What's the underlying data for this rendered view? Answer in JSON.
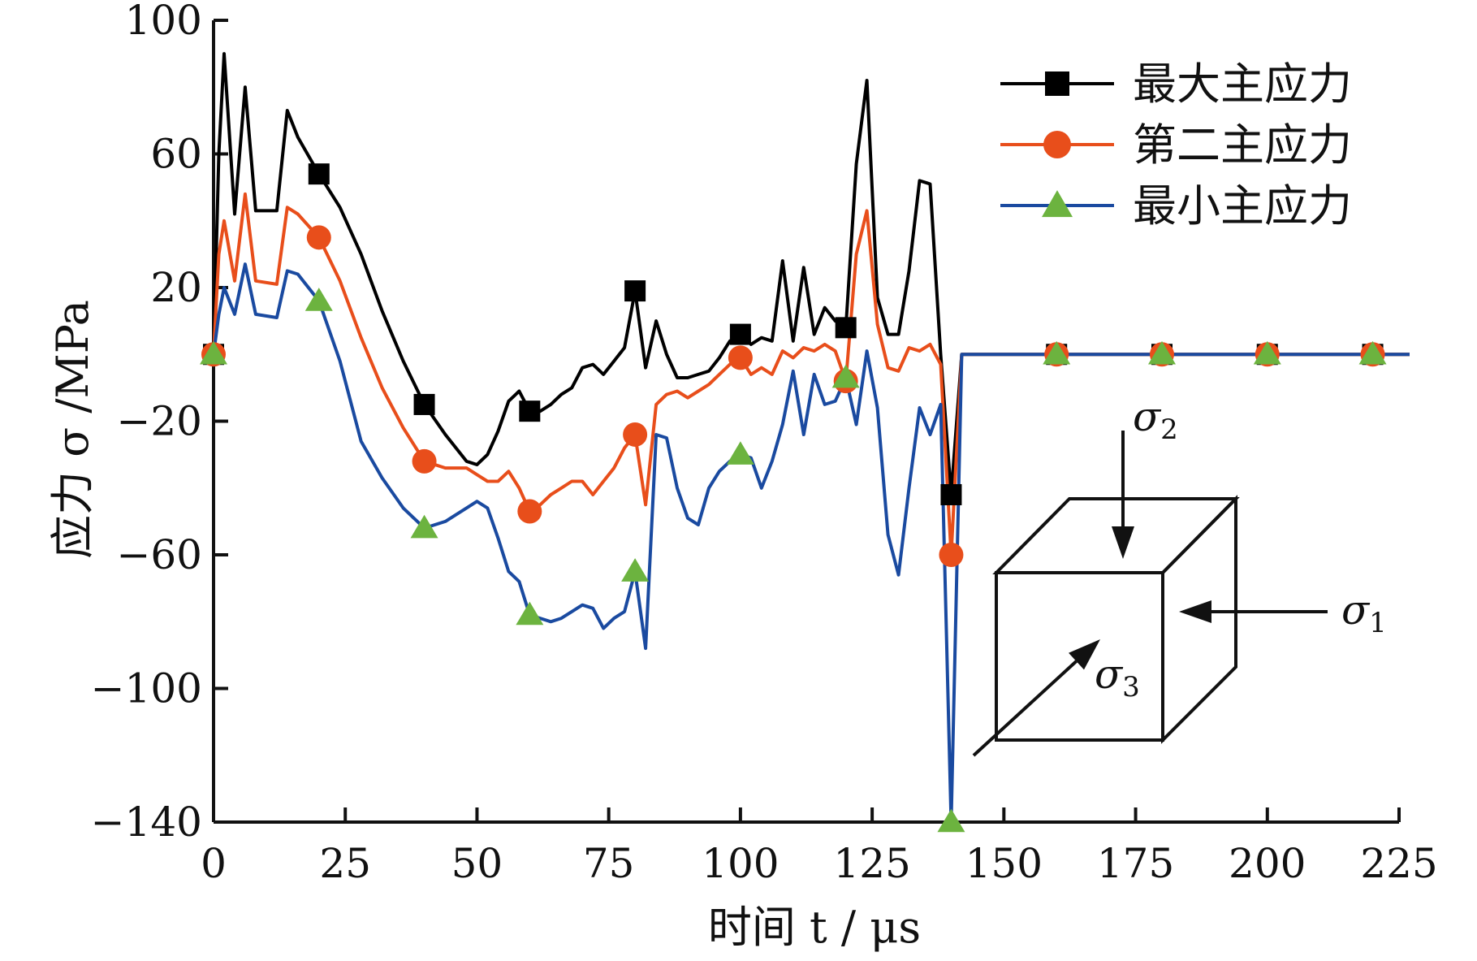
{
  "chart_data": {
    "type": "line",
    "xlabel": "时间 t / μs",
    "ylabel": "应力 σ /MPa",
    "xlim": [
      0,
      225
    ],
    "ylim": [
      -140,
      100
    ],
    "xticks": [
      0,
      25,
      50,
      75,
      100,
      125,
      150,
      175,
      200,
      225
    ],
    "yticks": [
      100,
      60,
      20,
      -20,
      -60,
      -100,
      -140
    ],
    "ytick_labels": [
      "100",
      "60",
      "20",
      "−20",
      "−60",
      "−100",
      "−140"
    ],
    "grid": false,
    "legend_position": "top-right",
    "series": [
      {
        "name": "最大主应力",
        "color": "#000000",
        "marker": "square",
        "marker_color": "#000000",
        "x": [
          0,
          1,
          2,
          4,
          6,
          8,
          12,
          14,
          16,
          20,
          24,
          28,
          32,
          36,
          40,
          44,
          48,
          50,
          52,
          54,
          56,
          58,
          60,
          62,
          64,
          66,
          68,
          70,
          72,
          74,
          76,
          78,
          80,
          82,
          84,
          86,
          88,
          90,
          92,
          94,
          96,
          98,
          100,
          102,
          104,
          106,
          108,
          110,
          112,
          114,
          116,
          118,
          120,
          122,
          124,
          126,
          128,
          130,
          132,
          134,
          136,
          138,
          140,
          142,
          150,
          160,
          180,
          200,
          220,
          227
        ],
        "y": [
          0,
          60,
          90,
          42,
          80,
          43,
          43,
          73,
          65,
          54,
          44,
          30,
          13,
          -2,
          -15,
          -24,
          -32,
          -33,
          -30,
          -23,
          -14,
          -11,
          -17,
          -17,
          -15,
          -12,
          -10,
          -4,
          -3,
          -6,
          -2,
          2,
          19,
          -4,
          10,
          0,
          -7,
          -7,
          -6,
          -5,
          -1,
          4,
          6,
          3,
          5,
          4,
          28,
          4,
          26,
          6,
          14,
          10,
          8,
          57,
          82,
          17,
          6,
          6,
          25,
          52,
          51,
          0,
          -42,
          0,
          0,
          0,
          0,
          0,
          0,
          0
        ]
      },
      {
        "name": "第二主应力",
        "color": "#e84e1b",
        "marker": "circle",
        "marker_color": "#e84e1b",
        "x": [
          0,
          1,
          2,
          4,
          6,
          8,
          12,
          14,
          16,
          20,
          24,
          28,
          32,
          36,
          40,
          44,
          48,
          50,
          52,
          54,
          56,
          58,
          60,
          62,
          64,
          66,
          68,
          70,
          72,
          74,
          76,
          78,
          80,
          82,
          84,
          86,
          88,
          90,
          92,
          94,
          96,
          98,
          100,
          102,
          104,
          106,
          108,
          110,
          112,
          114,
          116,
          118,
          120,
          122,
          124,
          126,
          128,
          130,
          132,
          134,
          136,
          138,
          140,
          142,
          150,
          160,
          180,
          200,
          220,
          227
        ],
        "y": [
          0,
          30,
          40,
          22,
          48,
          22,
          21,
          44,
          42,
          35,
          22,
          5,
          -10,
          -22,
          -32,
          -34,
          -34,
          -36,
          -38,
          -38,
          -35,
          -40,
          -47,
          -45,
          -42,
          -40,
          -38,
          -38,
          -42,
          -38,
          -34,
          -28,
          -24,
          -45,
          -15,
          -12,
          -11,
          -13,
          -11,
          -9,
          -6,
          -3,
          -1,
          -6,
          -4,
          -6,
          1,
          -1,
          2,
          1,
          3,
          1,
          -8,
          30,
          43,
          9,
          -4,
          -5,
          2,
          1,
          3,
          -3,
          -60,
          0,
          0,
          0,
          0,
          0,
          0,
          0
        ]
      },
      {
        "name": "最小主应力",
        "color": "#1a4aa0",
        "marker": "triangle",
        "marker_color": "#6cb33f",
        "x": [
          0,
          1,
          2,
          4,
          6,
          8,
          12,
          14,
          16,
          20,
          24,
          28,
          32,
          36,
          40,
          44,
          48,
          50,
          52,
          54,
          56,
          58,
          60,
          62,
          64,
          66,
          68,
          70,
          72,
          74,
          76,
          78,
          80,
          82,
          84,
          86,
          88,
          90,
          92,
          94,
          96,
          98,
          100,
          102,
          104,
          106,
          108,
          110,
          112,
          114,
          116,
          118,
          120,
          122,
          124,
          126,
          128,
          130,
          132,
          134,
          136,
          138,
          140,
          142,
          150,
          160,
          180,
          200,
          220,
          227
        ],
        "y": [
          0,
          12,
          20,
          12,
          27,
          12,
          11,
          25,
          24,
          16,
          -2,
          -26,
          -37,
          -46,
          -52,
          -50,
          -46,
          -44,
          -46,
          -55,
          -65,
          -68,
          -78,
          -79,
          -80,
          -79,
          -77,
          -75,
          -76,
          -82,
          -79,
          -77,
          -65,
          -88,
          -24,
          -25,
          -40,
          -49,
          -51,
          -40,
          -35,
          -32,
          -30,
          -31,
          -40,
          -32,
          -21,
          -5,
          -24,
          -6,
          -15,
          -14,
          -7,
          -21,
          1,
          -16,
          -54,
          -66,
          -40,
          -16,
          -24,
          -15,
          -140,
          0,
          0,
          0,
          0,
          0,
          0,
          0
        ]
      }
    ],
    "marker_x": [
      0,
      20,
      40,
      60,
      80,
      100,
      120,
      140,
      160,
      180,
      200,
      220
    ],
    "inset": {
      "labels": [
        "σ2",
        "σ1",
        "σ3"
      ]
    }
  }
}
